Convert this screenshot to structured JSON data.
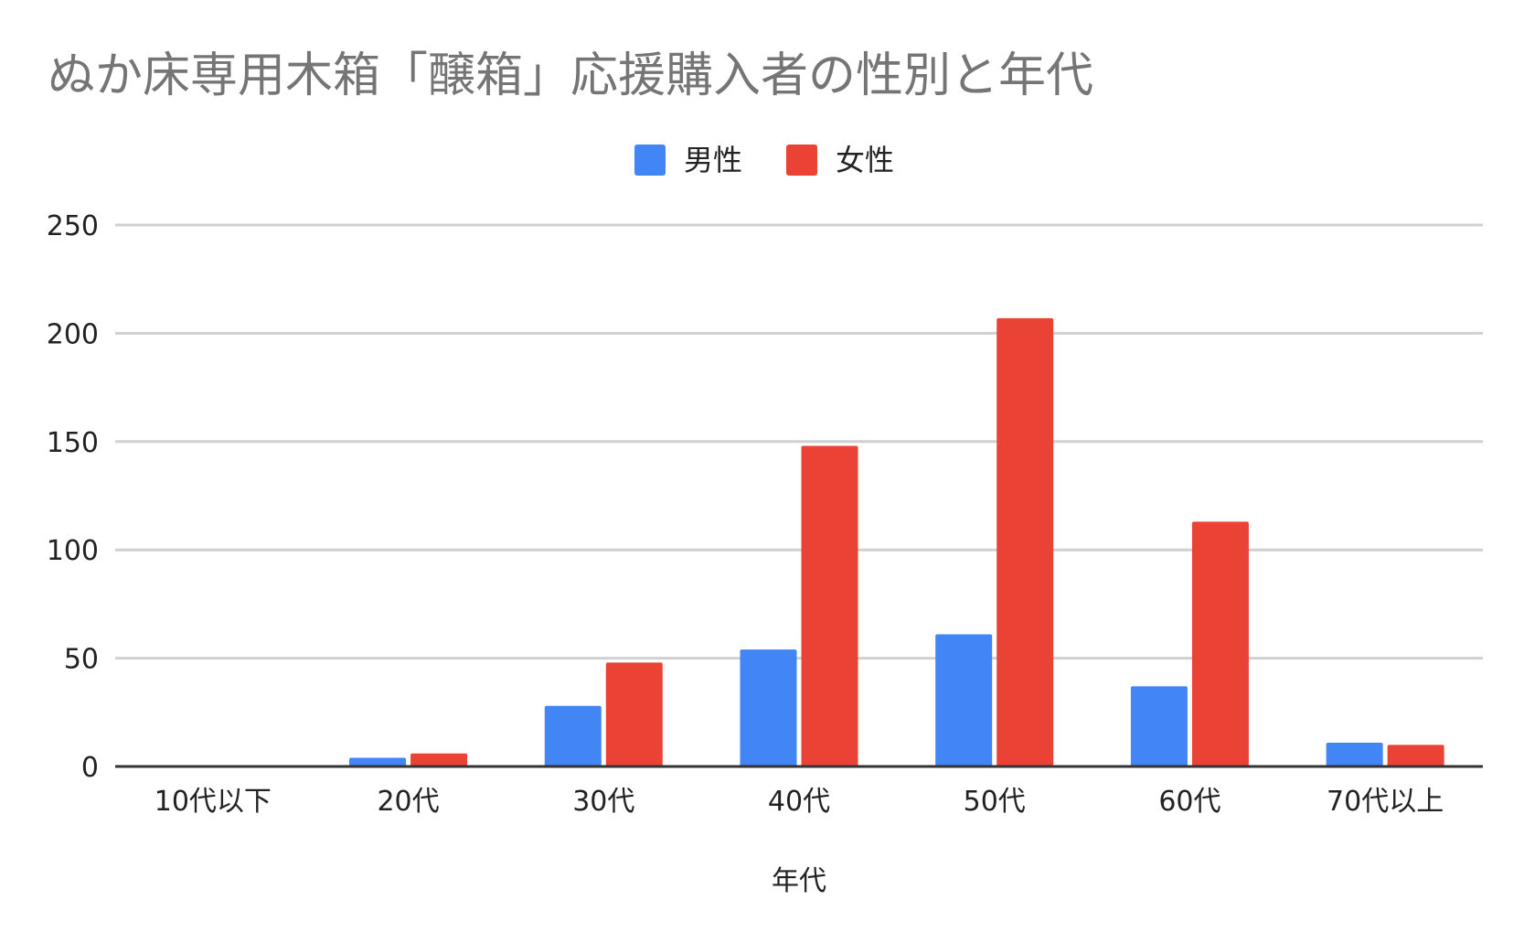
{
  "chart_data": {
    "type": "bar",
    "title": "ぬか床専用木箱「醸箱」応援購入者の性別と年代",
    "xlabel": "年代",
    "ylabel": "",
    "categories": [
      "10代以下",
      "20代",
      "30代",
      "40代",
      "50代",
      "60代",
      "70代以上"
    ],
    "series": [
      {
        "name": "男性",
        "color": "#4285f4",
        "values": [
          0,
          4,
          28,
          54,
          61,
          37,
          11
        ]
      },
      {
        "name": "女性",
        "color": "#ea4335",
        "values": [
          0,
          6,
          48,
          148,
          207,
          113,
          10
        ]
      }
    ],
    "ylim": [
      0,
      250
    ],
    "yticks": [
      "0",
      "50",
      "100",
      "150",
      "200",
      "250"
    ],
    "grid": true,
    "legend_position": "top-center"
  }
}
